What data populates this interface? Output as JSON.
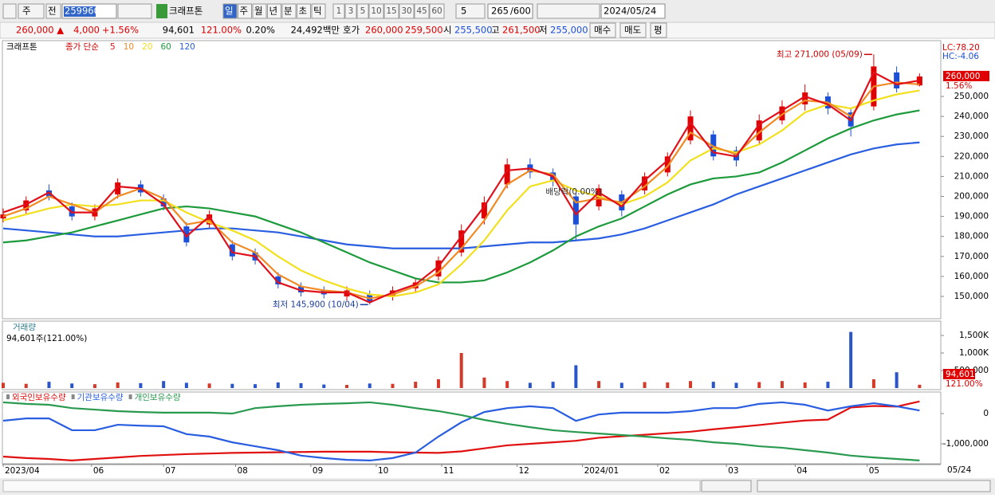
{
  "toolbar": {
    "market": "주",
    "prev": "전",
    "code": "259960",
    "name": "크래프톤",
    "periods": [
      "일",
      "주",
      "월",
      "년",
      "분",
      "초",
      "틱"
    ],
    "intervals": [
      "1",
      "3",
      "5",
      "10",
      "15",
      "30",
      "45",
      "60"
    ],
    "interval_value": "5",
    "count": "265",
    "max_count": "/600",
    "date": "2024/05/24"
  },
  "quote": {
    "price": "260,000 ▲",
    "change": "4,000",
    "change_pct": "+1.56%",
    "volume": "94,601",
    "volume_ratio": "121.00%",
    "turnover": "0.20%",
    "amount": "24,492백만",
    "ask_label": "호가",
    "ask": "260,000",
    "bid": "259,500",
    "open_label": "시",
    "open": "255,500",
    "high_label": "고",
    "high": "261,500",
    "low_label": "저",
    "low": "255,000",
    "buy": "매수",
    "sell": "매도",
    "avg": "평"
  },
  "x": [
    0,
    7,
    14,
    21,
    28,
    35,
    42,
    49,
    56,
    63,
    70,
    77,
    84,
    91,
    98,
    105,
    112,
    119,
    126,
    133,
    140,
    147,
    154,
    161,
    168,
    175,
    182,
    189,
    196,
    203,
    210,
    217,
    224,
    231,
    238,
    245,
    252,
    259,
    266,
    273,
    280
  ],
  "x_axis": {
    "xlim": [
      0,
      286
    ],
    "xticks": [
      {
        "value": 0,
        "label": "2023/04"
      },
      {
        "value": 27,
        "label": "06"
      },
      {
        "value": 49,
        "label": "07"
      },
      {
        "value": 71,
        "label": "08"
      },
      {
        "value": 94,
        "label": "09"
      },
      {
        "value": 114,
        "label": "10"
      },
      {
        "value": 134,
        "label": "11"
      },
      {
        "value": 157,
        "label": "12"
      },
      {
        "value": 177,
        "label": "2024/01"
      },
      {
        "value": 200,
        "label": "02"
      },
      {
        "value": 221,
        "label": "03"
      },
      {
        "value": 242,
        "label": "04"
      },
      {
        "value": 264,
        "label": "05"
      }
    ],
    "last_date": "05/24"
  },
  "price_panel": {
    "name": "크래프톤",
    "legend_prefix": "종가 단순",
    "up_color": "#e00000",
    "down_color": "#1c4fd8",
    "candles": {
      "open": [
        189000,
        193000,
        203000,
        195000,
        190000,
        201000,
        206000,
        199000,
        185000,
        186000,
        176000,
        172000,
        160000,
        155000,
        153000,
        150000,
        151000,
        150000,
        154000,
        160000,
        172000,
        189000,
        206000,
        216000,
        212000,
        200000,
        195000,
        201000,
        203000,
        212000,
        228000,
        231000,
        223000,
        228000,
        238000,
        246000,
        250000,
        242000,
        245000,
        262000,
        255500
      ],
      "high": [
        194000,
        200000,
        206000,
        197000,
        196000,
        209000,
        208000,
        201000,
        187000,
        193000,
        178000,
        174000,
        162000,
        157000,
        155000,
        155000,
        153000,
        155000,
        159000,
        170000,
        186000,
        200000,
        219000,
        219000,
        214000,
        202000,
        206000,
        203000,
        212000,
        222000,
        243000,
        233000,
        225000,
        241000,
        248000,
        256000,
        252000,
        244000,
        271000,
        265000,
        261500
      ],
      "low": [
        187000,
        191000,
        198000,
        188000,
        188000,
        199000,
        200000,
        193000,
        175000,
        184000,
        168000,
        166000,
        154000,
        150000,
        149000,
        148000,
        145900,
        148000,
        152000,
        158000,
        170000,
        186000,
        204000,
        209000,
        205000,
        178000,
        193000,
        190000,
        201000,
        210000,
        226000,
        218000,
        215000,
        226000,
        236000,
        243000,
        241000,
        230000,
        243000,
        252000,
        255000
      ],
      "close": [
        191000,
        198000,
        200000,
        190000,
        194000,
        207000,
        202000,
        195000,
        177000,
        191000,
        170000,
        168000,
        156000,
        152000,
        151000,
        153000,
        147000,
        153000,
        157000,
        168000,
        183000,
        197000,
        216000,
        212000,
        208000,
        186000,
        204000,
        193000,
        210000,
        220000,
        240000,
        220000,
        218000,
        238000,
        245000,
        252000,
        244000,
        235000,
        265000,
        254000,
        260000
      ]
    },
    "series": [
      {
        "name": "5",
        "color": "#e0101a",
        "values": [
          192000,
          196000,
          202000,
          192000,
          192000,
          205000,
          204000,
          196000,
          180000,
          190000,
          172000,
          170000,
          157000,
          153000,
          152000,
          152000,
          147000,
          152000,
          156000,
          165000,
          180000,
          195000,
          213000,
          214000,
          210000,
          191000,
          202000,
          195000,
          208000,
          218000,
          237000,
          222000,
          220000,
          236000,
          243000,
          250000,
          246000,
          238000,
          262000,
          256000,
          258000
        ]
      },
      {
        "name": "10",
        "color": "#f08a24",
        "values": [
          190000,
          194000,
          200000,
          196000,
          192000,
          200000,
          204000,
          199000,
          186000,
          188000,
          177000,
          172000,
          161000,
          155000,
          153000,
          152000,
          149000,
          151000,
          155000,
          162000,
          174000,
          188000,
          206000,
          213000,
          211000,
          197000,
          199000,
          197000,
          205000,
          215000,
          232000,
          225000,
          221000,
          232000,
          241000,
          248000,
          247000,
          240000,
          255000,
          257000,
          256000
        ]
      },
      {
        "name": "20",
        "color": "#f2e01e",
        "values": [
          188000,
          191000,
          194000,
          196000,
          195000,
          196000,
          198000,
          198000,
          192000,
          187000,
          183000,
          178000,
          170000,
          163000,
          158000,
          154000,
          151000,
          150000,
          152000,
          156000,
          166000,
          178000,
          193000,
          205000,
          208000,
          203000,
          200000,
          196000,
          200000,
          207000,
          218000,
          224000,
          222000,
          226000,
          233000,
          242000,
          246000,
          244000,
          248000,
          251000,
          253000
        ]
      },
      {
        "name": "60",
        "color": "#1d9a3c",
        "values": [
          177000,
          178000,
          180000,
          182000,
          185000,
          188000,
          191000,
          194000,
          195000,
          194000,
          192000,
          190000,
          186000,
          182000,
          177000,
          172000,
          167000,
          163000,
          159000,
          157000,
          157000,
          158000,
          162000,
          167000,
          173000,
          180000,
          185000,
          189000,
          195000,
          201000,
          206000,
          209000,
          210000,
          212000,
          217000,
          223000,
          229000,
          234000,
          238000,
          241000,
          243000
        ]
      },
      {
        "name": "120",
        "color": "#2a5ee0",
        "values": [
          184000,
          183000,
          182000,
          181000,
          180000,
          180000,
          181000,
          182000,
          183000,
          184000,
          184000,
          183000,
          182000,
          180000,
          178000,
          176000,
          175000,
          174000,
          174000,
          174000,
          174000,
          175000,
          176000,
          177000,
          177000,
          178000,
          179000,
          181000,
          184000,
          188000,
          192000,
          196000,
          201000,
          205000,
          209000,
          213000,
          217000,
          221000,
          224000,
          226000,
          227000
        ]
      }
    ],
    "ylim": [
      138850,
      277500
    ],
    "yticks": [
      {
        "value": 150000,
        "label": "150,000"
      },
      {
        "value": 160000,
        "label": "160,000"
      },
      {
        "value": 170000,
        "label": "170,000"
      },
      {
        "value": 180000,
        "label": "180,000"
      },
      {
        "value": 190000,
        "label": "190,000"
      },
      {
        "value": 200000,
        "label": "200,000"
      },
      {
        "value": 210000,
        "label": "210,000"
      },
      {
        "value": 220000,
        "label": "220,000"
      },
      {
        "value": 230000,
        "label": "230,000"
      },
      {
        "value": 240000,
        "label": "240,000"
      },
      {
        "value": 250000,
        "label": "250,000"
      }
    ],
    "last": {
      "value": 260000,
      "label": "260,000"
    },
    "last_pct": "1.56%",
    "lc": "LC:78.20",
    "hc": "HC:-4.06",
    "annotations": [
      {
        "text": "최고 271,000 (05/09)",
        "x": 266,
        "value": 271000
      },
      {
        "text": "최저 145,900 (10/04)",
        "x": 112,
        "value": 145900
      },
      {
        "text": "배당락(0.00%)",
        "x": 175
      }
    ]
  },
  "volume_panel": {
    "title": "거래량",
    "summary": "94,601주(121.00%)",
    "color_up": "#d43a2a",
    "color_down": "#2a55c8",
    "values": [
      150000,
      120000,
      180000,
      130000,
      110000,
      160000,
      140000,
      200000,
      150000,
      130000,
      120000,
      110000,
      160000,
      140000,
      100000,
      90000,
      130000,
      120000,
      180000,
      250000,
      1000000,
      300000,
      200000,
      150000,
      180000,
      650000,
      200000,
      150000,
      170000,
      160000,
      200000,
      180000,
      150000,
      170000,
      200000,
      160000,
      180000,
      1600000,
      250000,
      450000,
      94601
    ],
    "ylim": [
      0,
      1886000
    ],
    "yticks": [
      {
        "value": 500000,
        "label": "500,000"
      },
      {
        "value": 1000000,
        "label": "1,000K"
      },
      {
        "value": 1500000,
        "label": "1,500K"
      }
    ],
    "last_label": "94,601",
    "last_pct": "121.00%"
  },
  "flow_panel": {
    "series": [
      {
        "name": "외국인보유수량",
        "color": "#e01010",
        "values": [
          -1420000,
          -1470000,
          -1500000,
          -1550000,
          -1500000,
          -1450000,
          -1400000,
          -1370000,
          -1340000,
          -1320000,
          -1300000,
          -1290000,
          -1280000,
          -1270000,
          -1260000,
          -1260000,
          -1260000,
          -1280000,
          -1290000,
          -1300000,
          -1250000,
          -1150000,
          -1050000,
          -1000000,
          -950000,
          -900000,
          -800000,
          -750000,
          -700000,
          -650000,
          -600000,
          -520000,
          -450000,
          -380000,
          -300000,
          -230000,
          -200000,
          200000,
          250000,
          230000,
          400000
        ]
      },
      {
        "name": "기관보유수량",
        "color": "#2a5ee0",
        "values": [
          -237000,
          -160000,
          -160000,
          -550000,
          -550000,
          -370000,
          -400000,
          -420000,
          -680000,
          -760000,
          -950000,
          -1080000,
          -1210000,
          -1390000,
          -1470000,
          -1530000,
          -1550000,
          -1470000,
          -1290000,
          -760000,
          -290000,
          50000,
          180000,
          240000,
          180000,
          -240000,
          -30000,
          30000,
          30000,
          30000,
          80000,
          180000,
          180000,
          320000,
          370000,
          290000,
          100000,
          240000,
          340000,
          240000,
          100000
        ]
      },
      {
        "name": "개인보유수량",
        "color": "#2a9a50",
        "values": [
          370000,
          320000,
          290000,
          180000,
          130000,
          80000,
          50000,
          30000,
          30000,
          30000,
          0,
          180000,
          240000,
          290000,
          320000,
          340000,
          370000,
          290000,
          180000,
          80000,
          -50000,
          -210000,
          -340000,
          -450000,
          -550000,
          -610000,
          -660000,
          -710000,
          -760000,
          -820000,
          -870000,
          -950000,
          -1000000,
          -1080000,
          -1130000,
          -1210000,
          -1290000,
          -1390000,
          -1450000,
          -1500000,
          -1550000
        ]
      }
    ],
    "ylim": [
      -1684000,
      711000
    ],
    "yticks": [
      0,
      {
        "value": -1000000,
        "label": "-1,000,000"
      }
    ]
  }
}
